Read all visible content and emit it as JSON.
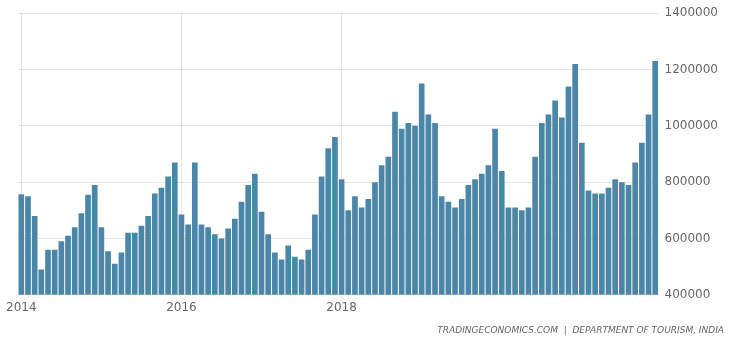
{
  "chart_data": {
    "type": "bar",
    "categories": [
      "2014",
      null,
      null,
      null,
      null,
      null,
      null,
      null,
      null,
      null,
      null,
      null,
      null,
      null,
      null,
      null,
      null,
      null,
      null,
      null,
      null,
      null,
      null,
      null,
      "2016",
      null,
      null,
      null,
      null,
      null,
      null,
      null,
      null,
      null,
      null,
      null,
      null,
      null,
      null,
      null,
      null,
      null,
      null,
      null,
      null,
      null,
      null,
      null,
      "2018",
      null,
      null,
      null,
      null,
      null,
      null,
      null,
      null,
      null,
      null,
      null,
      null,
      null,
      null,
      null,
      null,
      null,
      null,
      null,
      null,
      null,
      null,
      null,
      null,
      null,
      null,
      null,
      null,
      null,
      null,
      null,
      null,
      null,
      null,
      null,
      null,
      null,
      null,
      null,
      null,
      null,
      null,
      null,
      null,
      null,
      null,
      null
    ],
    "values": [
      757000,
      750000,
      680000,
      490000,
      560000,
      560000,
      590000,
      610000,
      640000,
      690000,
      755000,
      790000,
      640000,
      555000,
      510000,
      550000,
      620000,
      620000,
      645000,
      680000,
      760000,
      780000,
      820000,
      870000,
      685000,
      650000,
      870000,
      650000,
      640000,
      615000,
      600000,
      635000,
      670000,
      730000,
      790000,
      830000,
      695000,
      615000,
      550000,
      525000,
      575000,
      535000,
      525000,
      560000,
      685000,
      820000,
      920000,
      960000,
      810000,
      700000,
      750000,
      710000,
      740000,
      800000,
      860000,
      890000,
      1050000,
      990000,
      1010000,
      1000000,
      1150000,
      1040000,
      1010000,
      750000,
      730000,
      710000,
      740000,
      790000,
      810000,
      830000,
      860000,
      990000,
      840000,
      710000,
      710000,
      700000,
      710000,
      890000,
      1010000,
      1040000,
      1090000,
      1030000,
      1140000,
      1220000,
      940000,
      770000,
      760000,
      760000,
      780000,
      810000,
      800000,
      790000,
      870000,
      940000,
      1040000,
      1230000
    ],
    "color": "#4a86a8",
    "ylim": [
      400000,
      1400000
    ],
    "yticks": [
      400000,
      600000,
      800000,
      1000000,
      1200000,
      1400000
    ],
    "grid": true,
    "annotations": [
      "TRADINGECONOMICS.COM  |  DEPARTMENT OF TOURISM, INDIA"
    ]
  }
}
